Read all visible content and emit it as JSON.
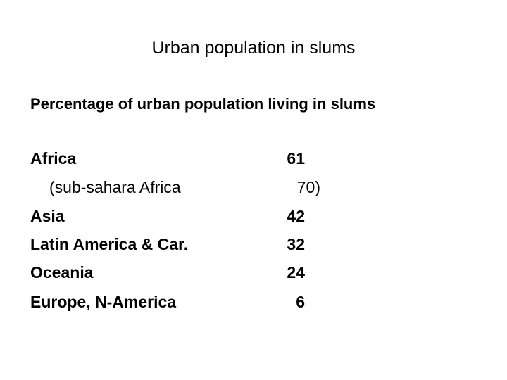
{
  "header": {
    "title": "Urban population in slums",
    "subtitle": "Percentage of urban population living in slums"
  },
  "table": {
    "rows": [
      [
        "Africa",
        "61"
      ],
      [
        "(sub-sahara Africa",
        "70)"
      ],
      [
        "Asia",
        "42"
      ],
      [
        "Latin America & Car.",
        "32"
      ],
      [
        "Oceania",
        "24"
      ],
      [
        "Europe, N-America",
        "6"
      ]
    ]
  }
}
